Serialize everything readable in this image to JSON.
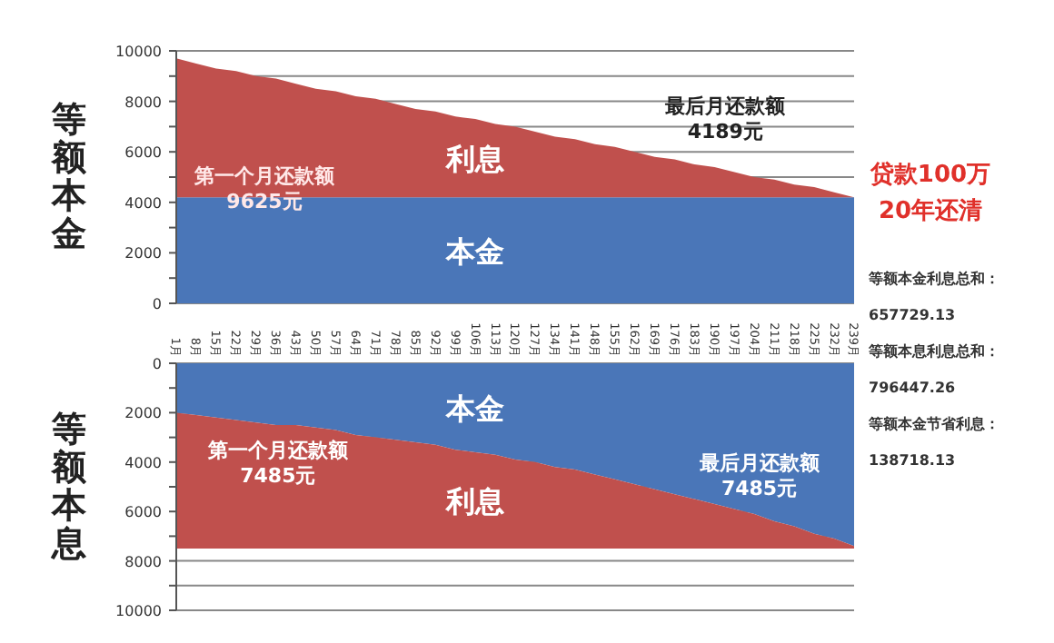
{
  "chart_data": [
    {
      "type": "area",
      "stacked": true,
      "ylabel": "等额本金",
      "grid": "y",
      "categories": [
        null,
        null,
        null,
        null,
        null,
        null,
        null,
        null,
        null,
        null,
        null,
        null,
        null,
        null,
        null,
        null,
        null,
        null,
        null,
        null,
        null,
        null,
        null,
        null,
        null,
        null,
        null,
        null,
        null,
        null,
        null,
        null,
        null,
        null,
        null
      ],
      "ylim": [
        0,
        10000
      ],
      "yticks": [
        0,
        {
          "value": 1000,
          "label": null
        },
        2000,
        {
          "value": 3000,
          "label": null
        },
        4000,
        {
          "value": 5000,
          "label": null
        },
        6000,
        {
          "value": 7000,
          "label": null
        },
        8000,
        {
          "value": 9000,
          "label": null
        },
        10000
      ],
      "series": [
        {
          "name": "本金",
          "color": "#4a76b8",
          "values": [
            4200,
            4200,
            4200,
            4200,
            4200,
            4200,
            4200,
            4200,
            4200,
            4200,
            4200,
            4200,
            4200,
            4200,
            4200,
            4200,
            4200,
            4200,
            4200,
            4200,
            4200,
            4200,
            4200,
            4200,
            4200,
            4200,
            4200,
            4200,
            4200,
            4200,
            4200,
            4200,
            4200,
            4200,
            4200
          ]
        },
        {
          "name": "利息",
          "color": "#c0504d",
          "values": [
            5500,
            5300,
            5100,
            5000,
            4800,
            4700,
            4500,
            4300,
            4200,
            4000,
            3900,
            3700,
            3500,
            3400,
            3200,
            3100,
            2900,
            2800,
            2600,
            2400,
            2300,
            2100,
            2000,
            1800,
            1600,
            1500,
            1300,
            1200,
            1000,
            800,
            700,
            500,
            400,
            200,
            0
          ]
        }
      ],
      "annotations": [
        "第一个月还款额\n9625元",
        "最后月还款额\n4189元"
      ]
    },
    {
      "type": "area",
      "stacked": true,
      "ylabel": "等额本息",
      "grid": "y",
      "categories": [
        "1月",
        "8月",
        "15月",
        "22月",
        "29月",
        "36月",
        "43月",
        "50月",
        "57月",
        "64月",
        "71月",
        "78月",
        "85月",
        "92月",
        "99月",
        "106月",
        "113月",
        "120月",
        "127月",
        "134月",
        "141月",
        "148月",
        "155月",
        "162月",
        "169月",
        "176月",
        "183月",
        "190月",
        "197月",
        "204月",
        "211月",
        "218月",
        "225月",
        "232月",
        "239月"
      ],
      "ylim": [
        10000,
        0
      ],
      "yticks": [
        0,
        {
          "value": 1000,
          "label": null
        },
        2000,
        {
          "value": 3000,
          "label": null
        },
        4000,
        {
          "value": 5000,
          "label": null
        },
        6000,
        {
          "value": 7000,
          "label": null
        },
        8000,
        {
          "value": 9000,
          "label": null
        },
        10000
      ],
      "series": [
        {
          "name": "本金",
          "color": "#4a76b8",
          "values": [
            2000,
            2100,
            2200,
            2300,
            2400,
            2500,
            2500,
            2600,
            2700,
            2900,
            3000,
            3100,
            3200,
            3300,
            3500,
            3600,
            3700,
            3900,
            4000,
            4200,
            4300,
            4500,
            4700,
            4900,
            5100,
            5300,
            5500,
            5700,
            5900,
            6100,
            6400,
            6600,
            6900,
            7100,
            7400
          ]
        },
        {
          "name": "利息",
          "color": "#c0504d",
          "values": [
            5500,
            5400,
            5300,
            5200,
            5100,
            5000,
            5000,
            4900,
            4800,
            4600,
            4500,
            4400,
            4300,
            4200,
            4000,
            3900,
            3800,
            3600,
            3500,
            3300,
            3200,
            3000,
            2800,
            2600,
            2400,
            2200,
            2000,
            1800,
            1600,
            1400,
            1100,
            900,
            600,
            400,
            100
          ]
        }
      ],
      "annotations": [
        "第一个月还款额\n7485元",
        "最后月还款额\n7485元"
      ]
    },
    {
      "type": "other",
      "title": "贷款100万\n20年还清",
      "annotations": [
        "等额本金利息总和：",
        "657729.13",
        "等额本息利息总和：",
        "796447.26",
        "等额本金节省利息：",
        "138718.13"
      ]
    }
  ]
}
